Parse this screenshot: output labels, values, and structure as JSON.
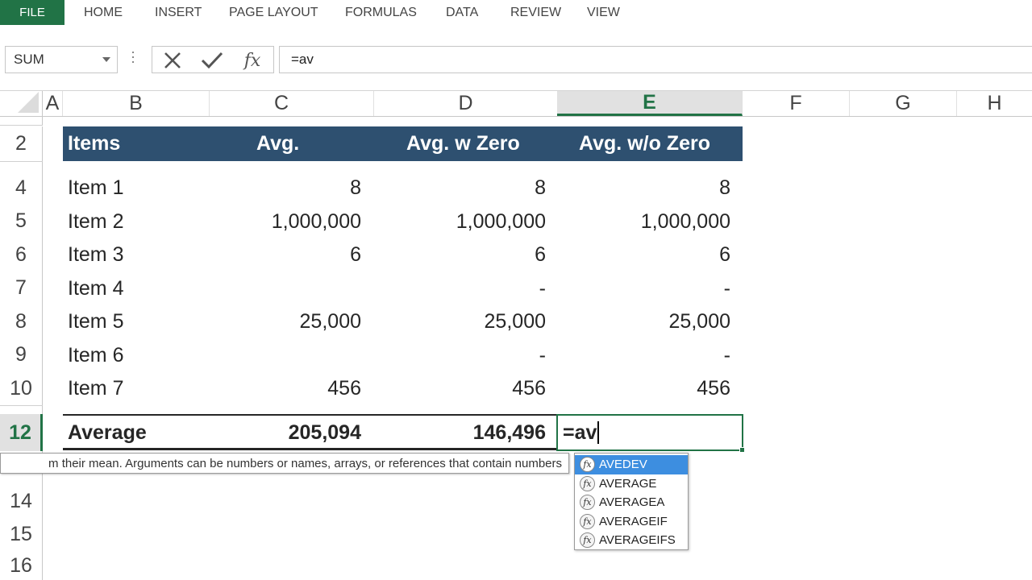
{
  "ribbon": {
    "tabs": [
      "FILE",
      "HOME",
      "INSERT",
      "PAGE LAYOUT",
      "FORMULAS",
      "DATA",
      "REVIEW",
      "VIEW"
    ]
  },
  "formula_bar": {
    "name_box": "SUM",
    "formula": "=av",
    "cancel_icon": "x-icon",
    "enter_icon": "check-icon",
    "function_icon": "fx-icon",
    "fx_label": "fx"
  },
  "columns": [
    "A",
    "B",
    "C",
    "D",
    "E",
    "F",
    "G",
    "H"
  ],
  "selected_column": "E",
  "rows": [
    "2",
    "4",
    "5",
    "6",
    "7",
    "8",
    "9",
    "10",
    "12",
    "14",
    "15",
    "16"
  ],
  "selected_row": "12",
  "table": {
    "headers": [
      "Items",
      "Avg.",
      "Avg. w Zero",
      "Avg. w/o Zero"
    ],
    "data": [
      [
        "Item 1",
        "8",
        "8",
        "8"
      ],
      [
        "Item 2",
        "1,000,000",
        "1,000,000",
        "1,000,000"
      ],
      [
        "Item 3",
        "6",
        "6",
        "6"
      ],
      [
        "Item 4",
        "",
        "-",
        "-"
      ],
      [
        "Item 5",
        "25,000",
        "25,000",
        "25,000"
      ],
      [
        "Item 6",
        "",
        "-",
        "-"
      ],
      [
        "Item 7",
        "456",
        "456",
        "456"
      ]
    ],
    "average_row": [
      "Average",
      "205,094",
      "146,496"
    ],
    "active_cell_text": "=av"
  },
  "tooltip": "m their mean. Arguments can be numbers or names, arrays, or references that contain numbers",
  "autocomplete": {
    "items": [
      "AVEDEV",
      "AVERAGE",
      "AVERAGEA",
      "AVERAGEIF",
      "AVERAGEIFS"
    ],
    "highlighted": "AVEDEV",
    "item_icon": "fx-icon"
  },
  "colors": {
    "accent": "#217346",
    "header_band": "#2e5070",
    "highlight": "#3d8ee0"
  }
}
